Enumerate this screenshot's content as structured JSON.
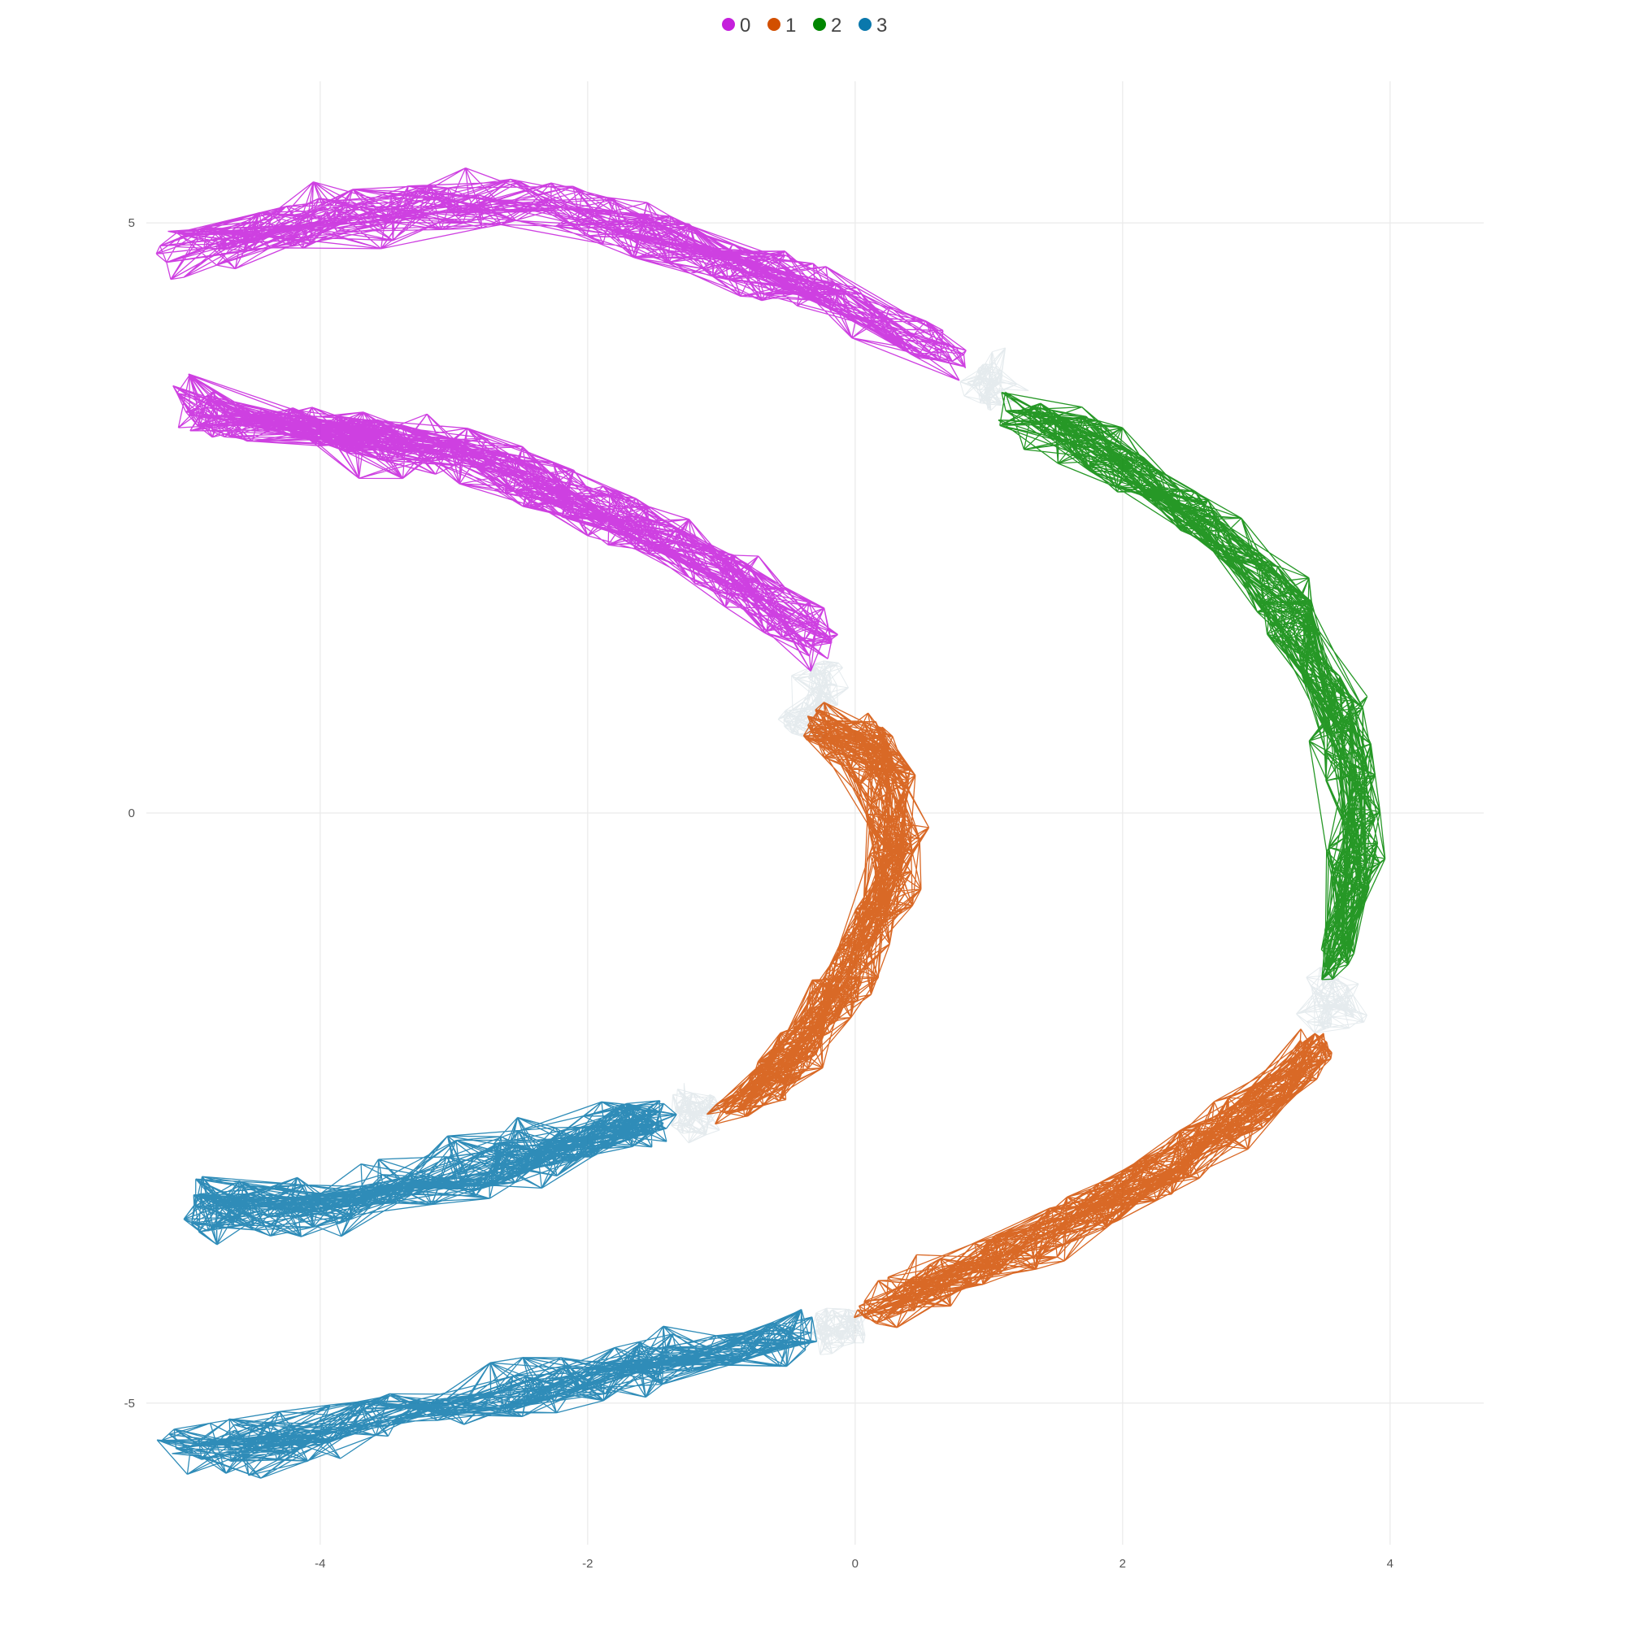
{
  "chart_data": {
    "type": "network",
    "title": "",
    "xlabel": "",
    "ylabel": "",
    "xlim": [
      -5.3,
      4.7
    ],
    "ylim": [
      -6.2,
      6.2
    ],
    "x_ticks": [
      -4,
      -2,
      0,
      2,
      4
    ],
    "y_ticks": [
      -5,
      0,
      5
    ],
    "grid": true,
    "legend": {
      "position": "top"
    },
    "bridge_color": "#c5d3d9",
    "series": [
      {
        "name": "0",
        "color": "#c51fdc"
      },
      {
        "name": "1",
        "color": "#d24f00"
      },
      {
        "name": "2",
        "color": "#008600"
      },
      {
        "name": "3",
        "color": "#0a78ac"
      }
    ],
    "segments": [
      {
        "series": "0",
        "path": [
          [
            -5.2,
            4.75
          ],
          [
            -4.3,
            4.95
          ],
          [
            -3.2,
            5.15
          ],
          [
            -2.2,
            5.1
          ],
          [
            -1.3,
            4.85
          ],
          [
            -0.4,
            4.45
          ],
          [
            0.4,
            4.1
          ],
          [
            0.9,
            3.8
          ]
        ],
        "width": 0.75,
        "nodes": 230,
        "edges": 1400
      },
      {
        "series": "2",
        "path": [
          [
            1.1,
            3.5
          ],
          [
            1.9,
            3.05
          ],
          [
            2.6,
            2.45
          ],
          [
            3.1,
            2.05
          ],
          [
            3.5,
            1.2
          ],
          [
            3.75,
            0.4
          ],
          [
            3.75,
            -0.5
          ],
          [
            3.55,
            -1.35
          ]
        ],
        "width": 0.65,
        "nodes": 240,
        "edges": 1500
      },
      {
        "series": "1",
        "path": [
          [
            3.55,
            -1.85
          ],
          [
            3.2,
            -2.3
          ],
          [
            2.6,
            -2.8
          ],
          [
            2.0,
            -3.25
          ],
          [
            1.3,
            -3.65
          ],
          [
            0.6,
            -3.95
          ],
          [
            0.05,
            -4.3
          ]
        ],
        "width": 0.65,
        "nodes": 200,
        "edges": 1250
      },
      {
        "series": "3",
        "path": [
          [
            -0.3,
            -4.4
          ],
          [
            -0.9,
            -4.45
          ],
          [
            -1.7,
            -4.75
          ],
          [
            -2.7,
            -4.95
          ],
          [
            -3.8,
            -5.15
          ],
          [
            -4.6,
            -5.35
          ],
          [
            -5.2,
            -5.35
          ]
        ],
        "width": 0.75,
        "nodes": 190,
        "edges": 1200
      },
      {
        "series": "0",
        "path": [
          [
            -5.1,
            3.45
          ],
          [
            -4.2,
            3.3
          ],
          [
            -3.2,
            3.1
          ],
          [
            -2.2,
            2.75
          ],
          [
            -1.3,
            2.25
          ],
          [
            -0.6,
            1.75
          ],
          [
            -0.2,
            1.3
          ]
        ],
        "width": 0.8,
        "nodes": 260,
        "edges": 1650
      },
      {
        "series": "1",
        "path": [
          [
            -0.4,
            0.7
          ],
          [
            0.2,
            0.65
          ],
          [
            0.35,
            -0.1
          ],
          [
            0.15,
            -1.0
          ],
          [
            -0.25,
            -1.75
          ],
          [
            -0.65,
            -2.3
          ],
          [
            -1.05,
            -2.55
          ]
        ],
        "width": 0.7,
        "nodes": 210,
        "edges": 1300
      },
      {
        "series": "3",
        "path": [
          [
            -1.35,
            -2.55
          ],
          [
            -2.0,
            -2.75
          ],
          [
            -3.0,
            -3.05
          ],
          [
            -4.0,
            -3.3
          ],
          [
            -4.7,
            -3.35
          ],
          [
            -5.0,
            -3.35
          ]
        ],
        "width": 0.75,
        "nodes": 210,
        "edges": 1300
      }
    ],
    "bridges": [
      {
        "path": [
          [
            0.9,
            3.8
          ],
          [
            1.1,
            3.5
          ]
        ],
        "width": 0.6
      },
      {
        "path": [
          [
            3.55,
            -1.35
          ],
          [
            3.55,
            -1.85
          ]
        ],
        "width": 0.6
      },
      {
        "path": [
          [
            0.05,
            -4.3
          ],
          [
            -0.3,
            -4.4
          ]
        ],
        "width": 0.5
      },
      {
        "path": [
          [
            -0.2,
            1.3
          ],
          [
            -0.4,
            0.7
          ]
        ],
        "width": 0.55
      },
      {
        "path": [
          [
            -1.05,
            -2.55
          ],
          [
            -1.35,
            -2.55
          ]
        ],
        "width": 0.6
      }
    ]
  }
}
